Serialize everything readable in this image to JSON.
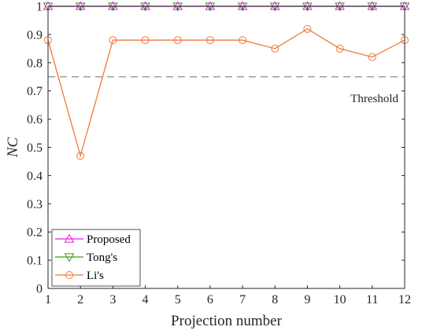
{
  "chart_data": {
    "type": "line",
    "title": "",
    "xlabel": "Projection number",
    "ylabel": "NC",
    "x": [
      1,
      2,
      3,
      4,
      5,
      6,
      7,
      8,
      9,
      10,
      11,
      12
    ],
    "xlim": [
      1,
      12
    ],
    "ylim": [
      0,
      1
    ],
    "xticks": [
      "1",
      "2",
      "3",
      "4",
      "5",
      "6",
      "7",
      "8",
      "9",
      "10",
      "11",
      "12"
    ],
    "yticks": [
      "0",
      "0.1",
      "0.2",
      "0.3",
      "0.4",
      "0.5",
      "0.6",
      "0.7",
      "0.8",
      "0.9",
      "1"
    ],
    "grid": false,
    "legend_position": "bottom-left",
    "series": [
      {
        "name": "Proposed",
        "marker": "triangle-up",
        "color": "#e61ee6",
        "values": [
          1,
          1,
          1,
          1,
          1,
          1,
          1,
          1,
          1,
          1,
          1,
          1
        ]
      },
      {
        "name": "Tong's",
        "marker": "triangle-down",
        "color": "#3c9b1e",
        "values": [
          1,
          1,
          1,
          1,
          1,
          1,
          1,
          1,
          1,
          1,
          1,
          1
        ]
      },
      {
        "name": "Li's",
        "marker": "circle",
        "color": "#f0783c",
        "values": [
          0.88,
          0.47,
          0.88,
          0.88,
          0.88,
          0.88,
          0.88,
          0.85,
          0.92,
          0.85,
          0.82,
          0.88
        ]
      }
    ],
    "reference_line": {
      "y": 0.75,
      "label": "Threshold",
      "color": "#8c8c8c",
      "style": "dashed"
    }
  }
}
